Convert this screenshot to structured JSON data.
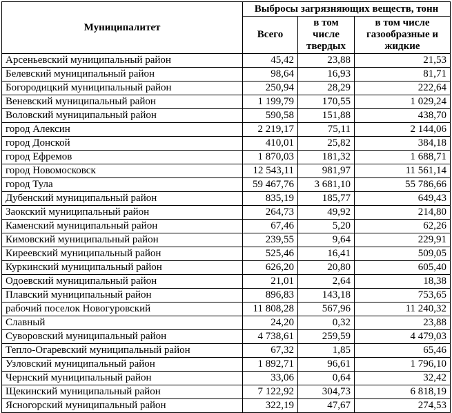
{
  "table": {
    "municipality_header": "Муниципалитет",
    "group_header": "Выбросы загрязняющих веществ, тонн",
    "subheaders": [
      "в том\nчисле\nтвердых",
      "в том числе\nгазообразные и\nжидкие"
    ],
    "total_header": "Всего",
    "rows": [
      {
        "name": "Арсеньевский муниципальный район",
        "total": "45,42",
        "solid": "23,88",
        "gaseous": "21,53"
      },
      {
        "name": "Белевский муниципальный район",
        "total": "98,64",
        "solid": "16,93",
        "gaseous": "81,71"
      },
      {
        "name": "Богородицкий муниципальный район",
        "total": "250,94",
        "solid": "28,29",
        "gaseous": "222,64"
      },
      {
        "name": "Веневский муниципальный район",
        "total": "1 199,79",
        "solid": "170,55",
        "gaseous": "1 029,24"
      },
      {
        "name": "Воловский муниципальный район",
        "total": "590,58",
        "solid": "151,88",
        "gaseous": "438,70"
      },
      {
        "name": "город Алексин",
        "total": "2 219,17",
        "solid": "75,11",
        "gaseous": "2 144,06"
      },
      {
        "name": "город Донской",
        "total": "410,01",
        "solid": "25,82",
        "gaseous": "384,18"
      },
      {
        "name": "город Ефремов",
        "total": "1 870,03",
        "solid": "181,32",
        "gaseous": "1 688,71"
      },
      {
        "name": "город Новомосковск",
        "total": "12 543,11",
        "solid": "981,97",
        "gaseous": "11 561,14"
      },
      {
        "name": "город Тула",
        "total": "59 467,76",
        "solid": "3 681,10",
        "gaseous": "55 786,66"
      },
      {
        "name": "Дубенский муниципальный район",
        "total": "835,19",
        "solid": "185,77",
        "gaseous": "649,43"
      },
      {
        "name": "Заокский муниципальный район",
        "total": "264,73",
        "solid": "49,92",
        "gaseous": "214,80"
      },
      {
        "name": "Каменский муниципальный район",
        "total": "67,46",
        "solid": "5,20",
        "gaseous": "62,26"
      },
      {
        "name": "Кимовский муниципальный район",
        "total": "239,55",
        "solid": "9,64",
        "gaseous": "229,91"
      },
      {
        "name": "Киреевский муниципальный район",
        "total": "525,46",
        "solid": "16,41",
        "gaseous": "509,05"
      },
      {
        "name": "Куркинский муниципальный район",
        "total": "626,20",
        "solid": "20,80",
        "gaseous": "605,40"
      },
      {
        "name": "Одоевский муниципальный район",
        "total": "21,01",
        "solid": "2,64",
        "gaseous": "18,38"
      },
      {
        "name": "Плавский муниципальный район",
        "total": "896,83",
        "solid": "143,18",
        "gaseous": "753,65"
      },
      {
        "name": "рабочий поселок Новогуровский",
        "total": "11 808,28",
        "solid": "567,96",
        "gaseous": "11 240,32"
      },
      {
        "name": "Славный",
        "total": "24,20",
        "solid": "0,32",
        "gaseous": "23,88"
      },
      {
        "name": "Суворовский муниципальный район",
        "total": "4 738,61",
        "solid": "259,59",
        "gaseous": "4 479,03"
      },
      {
        "name": "Тепло-Огаревский муниципальный район",
        "total": "67,32",
        "solid": "1,85",
        "gaseous": "65,46"
      },
      {
        "name": "Узловский муниципальный район",
        "total": "1 892,71",
        "solid": "96,61",
        "gaseous": "1 796,10"
      },
      {
        "name": "Чернский муниципальный район",
        "total": "33,06",
        "solid": "0,64",
        "gaseous": "32,42"
      },
      {
        "name": "Щекинский муниципальный район",
        "total": "7 122,92",
        "solid": "304,73",
        "gaseous": "6 818,19"
      },
      {
        "name": "Ясногорский муниципальный район",
        "total": "322,19",
        "solid": "47,67",
        "gaseous": "274,53"
      }
    ]
  },
  "chart_data": {
    "type": "table",
    "title": "Выбросы загрязняющих веществ, тонн",
    "columns": [
      "Муниципалитет",
      "Всего",
      "в том числе твердых",
      "в том числе газообразные и жидкие"
    ],
    "rows_key": "see table.rows"
  }
}
